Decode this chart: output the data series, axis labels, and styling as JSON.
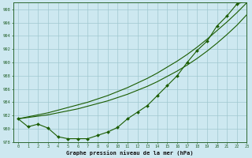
{
  "xlabel": "Graphe pression niveau de la mer (hPa)",
  "ylim": [
    978,
    999
  ],
  "xlim": [
    -0.5,
    23
  ],
  "yticks": [
    978,
    980,
    982,
    984,
    986,
    988,
    990,
    992,
    994,
    996,
    998
  ],
  "xticks": [
    0,
    1,
    2,
    3,
    4,
    5,
    6,
    7,
    8,
    9,
    10,
    11,
    12,
    13,
    14,
    15,
    16,
    17,
    18,
    19,
    20,
    21,
    22,
    23
  ],
  "background_color": "#cde8f0",
  "plot_bg_color": "#cde8f0",
  "grid_color": "#a0c8d0",
  "line_color": "#1a5c00",
  "series_main": [
    981.5,
    980.3,
    980.7,
    980.1,
    978.8,
    978.5,
    978.5,
    978.5,
    979.0,
    979.5,
    980.2,
    981.5,
    982.5,
    983.5,
    985.0,
    986.5,
    988.0,
    990.0,
    991.8,
    993.2,
    995.5,
    997.0,
    998.8,
    999.3
  ],
  "series_straight1": [
    981.5,
    981.7,
    981.9,
    982.1,
    982.4,
    982.7,
    983.0,
    983.4,
    983.8,
    984.2,
    984.7,
    985.2,
    985.8,
    986.4,
    987.1,
    987.9,
    988.7,
    989.6,
    990.6,
    991.7,
    992.9,
    994.2,
    995.6,
    997.2
  ],
  "series_straight2": [
    981.5,
    981.8,
    982.1,
    982.4,
    982.8,
    983.2,
    983.6,
    984.0,
    984.5,
    985.0,
    985.6,
    986.2,
    986.9,
    987.6,
    988.4,
    989.3,
    990.2,
    991.2,
    992.3,
    993.5,
    994.8,
    996.1,
    997.5,
    999.0
  ]
}
